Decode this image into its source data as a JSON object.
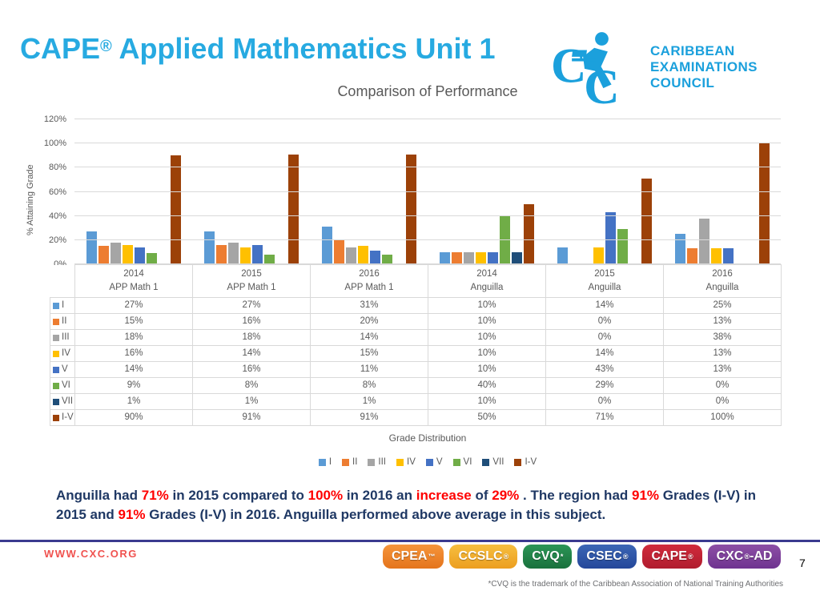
{
  "header": {
    "brand": "CAPE",
    "registered_mark": "®",
    "title_rest": " Applied Mathematics Unit 1"
  },
  "logo": {
    "color": "#1BA0DC",
    "text_lines": [
      "CARIBBEAN",
      "EXAMINATIONS",
      "COUNCIL"
    ]
  },
  "chart_data": {
    "type": "bar",
    "title": "Comparison of Performance",
    "ylabel": "% Attaining Grade",
    "xlabel": "Grade Distribution",
    "ylim": [
      0,
      120
    ],
    "ytick_step": 20,
    "ytick_suffix": "%",
    "value_suffix": "%",
    "grid": true,
    "legend_position": "bottom",
    "groups": [
      {
        "year": "2014",
        "series_label": "APP Math 1"
      },
      {
        "year": "2015",
        "series_label": "APP Math 1"
      },
      {
        "year": "2016",
        "series_label": "APP Math 1"
      },
      {
        "year": "2014",
        "series_label": "Anguilla"
      },
      {
        "year": "2015",
        "series_label": "Anguilla"
      },
      {
        "year": "2016",
        "series_label": "Anguilla"
      }
    ],
    "series": [
      {
        "name": "I",
        "color": "#5B9BD5",
        "values": [
          27,
          27,
          31,
          10,
          14,
          25
        ]
      },
      {
        "name": "II",
        "color": "#ED7D31",
        "values": [
          15,
          16,
          20,
          10,
          0,
          13
        ]
      },
      {
        "name": "III",
        "color": "#A5A5A5",
        "values": [
          18,
          18,
          14,
          10,
          0,
          38
        ]
      },
      {
        "name": "IV",
        "color": "#FFC000",
        "values": [
          16,
          14,
          15,
          10,
          14,
          13
        ]
      },
      {
        "name": "V",
        "color": "#4472C4",
        "values": [
          14,
          16,
          11,
          10,
          43,
          13
        ]
      },
      {
        "name": "VI",
        "color": "#70AD47",
        "values": [
          9,
          8,
          8,
          40,
          29,
          0
        ]
      },
      {
        "name": "VII",
        "color": "#1F4E79",
        "values": [
          1,
          1,
          1,
          10,
          0,
          0
        ]
      },
      {
        "name": "I-V",
        "color": "#9C4108",
        "values": [
          90,
          91,
          91,
          50,
          71,
          100
        ]
      }
    ]
  },
  "commentary": {
    "colors": {
      "navy": "#1F3864",
      "red": "#FF0000"
    },
    "segments": [
      {
        "t": "Anguilla had ",
        "c": "navy"
      },
      {
        "t": "71% ",
        "c": "red"
      },
      {
        "t": "in 2015 compared to ",
        "c": "navy"
      },
      {
        "t": "100% ",
        "c": "red"
      },
      {
        "t": "in 2016 an ",
        "c": "navy"
      },
      {
        "t": "increase",
        "c": "red"
      },
      {
        "t": " of ",
        "c": "navy"
      },
      {
        "t": "29% ",
        "c": "red"
      },
      {
        "t": ". The region had ",
        "c": "navy"
      },
      {
        "t": "91% ",
        "c": "red"
      },
      {
        "t": "Grades (I-V) in 2015 and ",
        "c": "navy"
      },
      {
        "t": "91% ",
        "c": "red"
      },
      {
        "t": "Grades (I-V) in 2016. Anguilla performed above average in this subject.",
        "c": "navy"
      }
    ]
  },
  "footer": {
    "url": "WWW.CXC.ORG",
    "badges": [
      {
        "label": "CPEA",
        "sup": "™",
        "suffix": "",
        "c1": "#F6953B",
        "c2": "#E4741C"
      },
      {
        "label": "CCSLC",
        "sup": "®",
        "suffix": "",
        "c1": "#F6BE3F",
        "c2": "#EC9E1F"
      },
      {
        "label": "CVQ",
        "sup": "*",
        "suffix": "",
        "c1": "#2C9556",
        "c2": "#19713D"
      },
      {
        "label": "CSEC",
        "sup": "®",
        "suffix": "",
        "c1": "#3C66B5",
        "c2": "#24479A"
      },
      {
        "label": "CAPE",
        "sup": "®",
        "suffix": "",
        "c1": "#D02B3C",
        "c2": "#B01C2E"
      },
      {
        "label": "CXC",
        "sup": "®",
        "suffix": "-AD",
        "c1": "#8C4FA5",
        "c2": "#6F3390"
      }
    ],
    "note": "*CVQ is the trademark of the Caribbean Association of National Training Authorities",
    "page_number": "7"
  }
}
